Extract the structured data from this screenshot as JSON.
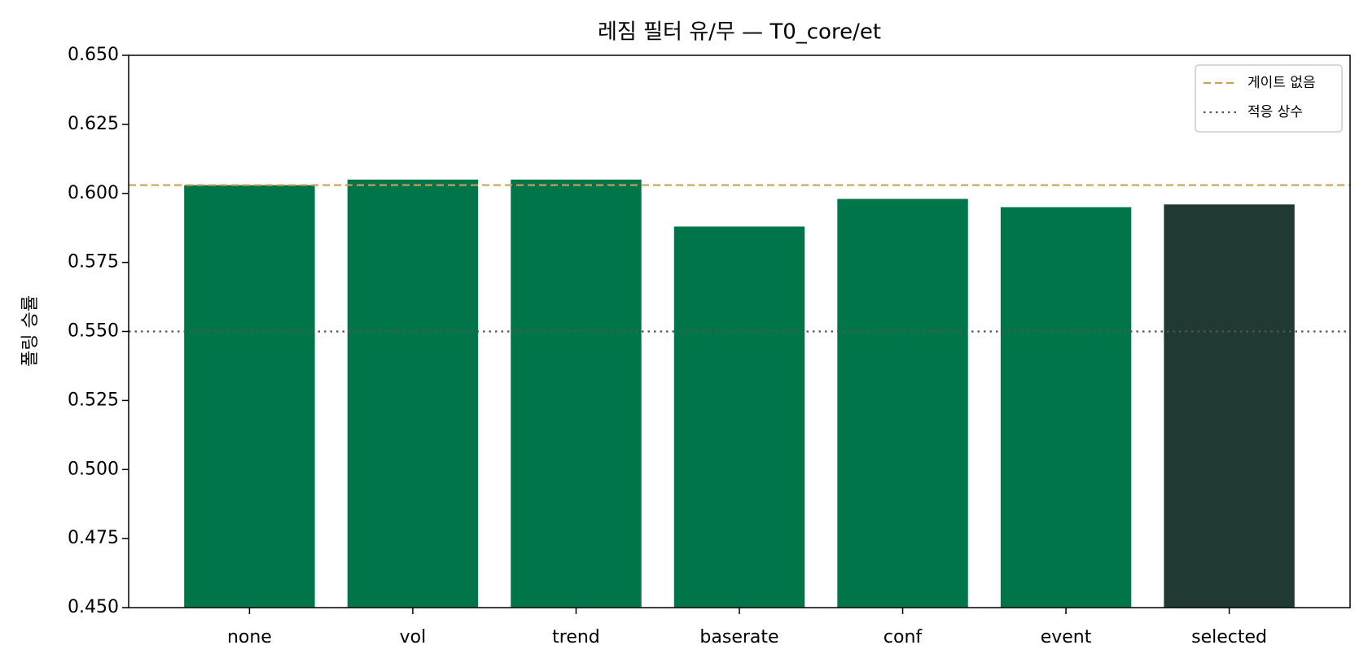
{
  "chart_data": {
    "type": "bar",
    "title": "레짐 필터 유/무 — T0_core/et",
    "y_label": "폴링 승률",
    "categories": [
      "none",
      "vol",
      "trend",
      "baserate",
      "conf",
      "event",
      "selected"
    ],
    "values": [
      0.603,
      0.605,
      0.605,
      0.588,
      0.598,
      0.595,
      0.596
    ],
    "colors": [
      "#00754a",
      "#00754a",
      "#00754a",
      "#00754a",
      "#00754a",
      "#00754a",
      "#203a33"
    ],
    "ylim": [
      0.45,
      0.65
    ],
    "yticks": [
      {
        "value": 0.45,
        "label": "0.450"
      },
      {
        "value": 0.475,
        "label": "0.475"
      },
      {
        "value": 0.5,
        "label": "0.500"
      },
      {
        "value": 0.525,
        "label": "0.525"
      },
      {
        "value": 0.55,
        "label": "0.550"
      },
      {
        "value": 0.575,
        "label": "0.575"
      },
      {
        "value": 0.6,
        "label": "0.600"
      },
      {
        "value": 0.625,
        "label": "0.625"
      },
      {
        "value": 0.65,
        "label": "0.650"
      }
    ],
    "reference_lines": [
      {
        "name": "게이트 없음",
        "value": 0.603,
        "color": "#c9a15b",
        "style": "dashed"
      },
      {
        "name": "적응 상수",
        "value": 0.55,
        "color": "#555555",
        "style": "dotted"
      }
    ],
    "legend": "upper right",
    "grid": false
  }
}
